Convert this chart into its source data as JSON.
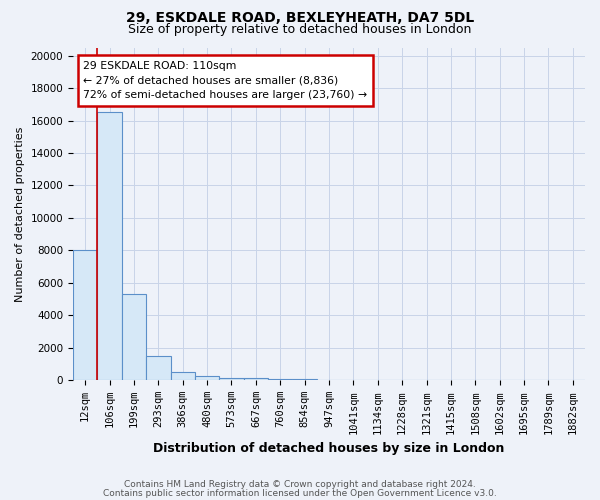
{
  "title_line1": "29, ESKDALE ROAD, BEXLEYHEATH, DA7 5DL",
  "title_line2": "Size of property relative to detached houses in London",
  "xlabel": "Distribution of detached houses by size in London",
  "ylabel": "Number of detached properties",
  "categories": [
    "12sqm",
    "106sqm",
    "199sqm",
    "293sqm",
    "386sqm",
    "480sqm",
    "573sqm",
    "667sqm",
    "760sqm",
    "854sqm",
    "947sqm",
    "1041sqm",
    "1134sqm",
    "1228sqm",
    "1321sqm",
    "1415sqm",
    "1508sqm",
    "1602sqm",
    "1695sqm",
    "1789sqm",
    "1882sqm"
  ],
  "values": [
    8050,
    16500,
    5300,
    1500,
    500,
    270,
    150,
    120,
    100,
    80,
    0,
    0,
    0,
    0,
    0,
    0,
    0,
    0,
    0,
    0,
    0
  ],
  "bar_color": "#d6e8f7",
  "bar_edge_color": "#5b8fc9",
  "red_line_x": 0.5,
  "annotation_text_line1": "29 ESKDALE ROAD: 110sqm",
  "annotation_text_line2": "← 27% of detached houses are smaller (8,836)",
  "annotation_text_line3": "72% of semi-detached houses are larger (23,760) →",
  "annotation_box_color": "white",
  "annotation_box_edge_color": "#cc0000",
  "ylim_max": 20500,
  "yticks": [
    0,
    2000,
    4000,
    6000,
    8000,
    10000,
    12000,
    14000,
    16000,
    18000,
    20000
  ],
  "footer_line1": "Contains HM Land Registry data © Crown copyright and database right 2024.",
  "footer_line2": "Contains public sector information licensed under the Open Government Licence v3.0.",
  "background_color": "#eef2f9",
  "grid_color": "#c8d4e8",
  "title_fontsize": 10,
  "subtitle_fontsize": 9,
  "ylabel_fontsize": 8,
  "xlabel_fontsize": 9,
  "tick_fontsize": 7.5,
  "footer_fontsize": 6.5
}
